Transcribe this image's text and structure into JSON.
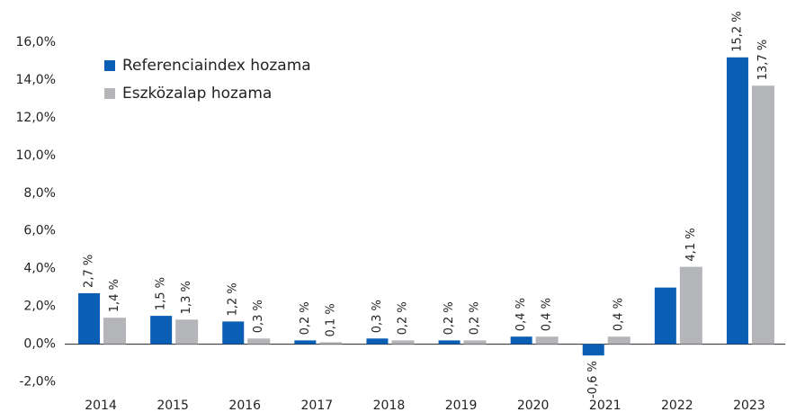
{
  "chart_data": {
    "type": "bar",
    "categories": [
      "2014",
      "2015",
      "2016",
      "2017",
      "2018",
      "2019",
      "2020",
      "2021",
      "2022",
      "2023"
    ],
    "series": [
      {
        "name": "Referenciaindex hozama",
        "color": "#0a5fb4",
        "values": [
          2.7,
          1.5,
          1.2,
          0.2,
          0.3,
          0.2,
          0.4,
          -0.6,
          3.0,
          15.2
        ],
        "value_labels": [
          "2,7 %",
          "1,5 %",
          "1,2 %",
          "0,2 %",
          "0,3 %",
          "0,2 %",
          "0,4 %",
          "-0,6 %",
          null,
          "15,2 %"
        ]
      },
      {
        "name": "Eszközalap hozama",
        "color": "#b4b5b8",
        "values": [
          1.4,
          1.3,
          0.3,
          0.1,
          0.2,
          0.2,
          0.4,
          0.4,
          4.1,
          13.7
        ],
        "value_labels": [
          "1,4 %",
          "1,3 %",
          "0,3 %",
          "0,1 %",
          "0,2 %",
          "0,2 %",
          "0,4 %",
          "0,4 %",
          "4,1 %",
          "13,7 %"
        ]
      }
    ],
    "ylim": [
      -3,
      17
    ],
    "yticks": [
      {
        "value": -2,
        "label": "-2,0%"
      },
      {
        "value": 0,
        "label": "0,0%"
      },
      {
        "value": 2,
        "label": "2,0%"
      },
      {
        "value": 4,
        "label": "4,0%"
      },
      {
        "value": 6,
        "label": "6,0%"
      },
      {
        "value": 8,
        "label": "8,0%"
      },
      {
        "value": 10,
        "label": "10,0%"
      },
      {
        "value": 12,
        "label": "12,0%"
      },
      {
        "value": 14,
        "label": "14,0%"
      },
      {
        "value": 16,
        "label": "16,0%"
      }
    ],
    "grid": false,
    "legend": "upper left"
  }
}
